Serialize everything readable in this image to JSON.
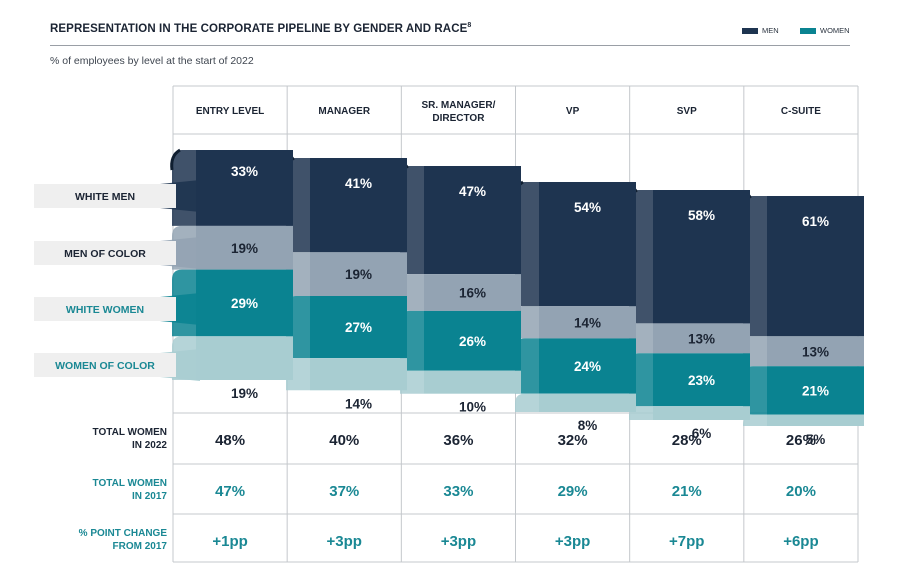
{
  "title": "REPRESENTATION IN THE CORPORATE PIPELINE BY GENDER AND RACE",
  "title_superscript": "8",
  "subtitle": "% of employees by level at the start of 2022",
  "legend": [
    {
      "label": "MEN",
      "color": "#1e3450"
    },
    {
      "label": "WOMEN",
      "color": "#0a8391"
    }
  ],
  "colors": {
    "white_men": "#1e3450",
    "men_of_color": "#93a3b3",
    "white_women": "#0a8391",
    "women_of_color": "#a8cdd1",
    "teal_text": "#1a8894",
    "grid": "#c4c8cc"
  },
  "chart_data": {
    "type": "stacked_bar",
    "title": "REPRESENTATION IN THE CORPORATE PIPELINE BY GENDER AND RACE",
    "categories": [
      "ENTRY LEVEL",
      "MANAGER",
      "SR. MANAGER/ DIRECTOR",
      "VP",
      "SVP",
      "C-SUITE"
    ],
    "unit": "%",
    "series": [
      {
        "name": "WHITE MEN",
        "values": [
          33,
          41,
          47,
          54,
          58,
          61
        ]
      },
      {
        "name": "MEN OF COLOR",
        "values": [
          19,
          19,
          16,
          14,
          13,
          13
        ]
      },
      {
        "name": "WHITE WOMEN",
        "values": [
          29,
          27,
          26,
          24,
          23,
          21
        ]
      },
      {
        "name": "WOMEN OF COLOR",
        "values": [
          19,
          14,
          10,
          8,
          6,
          5
        ]
      }
    ],
    "labels": {
      "WHITE MEN": [
        "33%",
        "41%",
        "47%",
        "54%",
        "58%",
        "61%"
      ],
      "MEN OF COLOR": [
        "19%",
        "19%",
        "16%",
        "14%",
        "13%",
        "13%"
      ],
      "WHITE WOMEN": [
        "29%",
        "27%",
        "26%",
        "24%",
        "23%",
        "21%"
      ],
      "WOMEN OF COLOR": [
        "19%",
        "14%",
        "10%",
        "8%",
        "6%",
        "5%"
      ]
    },
    "table": [
      {
        "label": "TOTAL WOMEN IN 2022",
        "values": [
          "48%",
          "40%",
          "36%",
          "32%",
          "28%",
          "26%"
        ],
        "style": "dark"
      },
      {
        "label": "TOTAL WOMEN IN 2017",
        "values": [
          "47%",
          "37%",
          "33%",
          "29%",
          "21%",
          "20%"
        ],
        "style": "teal"
      },
      {
        "label": "% POINT CHANGE FROM 2017",
        "values": [
          "+1pp",
          "+3pp",
          "+3pp",
          "+3pp",
          "+7pp",
          "+6pp"
        ],
        "style": "teal"
      }
    ]
  }
}
